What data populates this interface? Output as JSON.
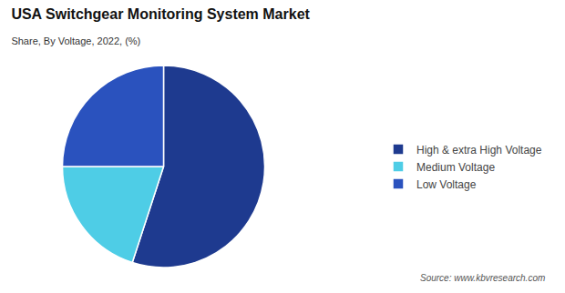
{
  "chart_data": {
    "type": "pie",
    "title": "USA Switchgear Monitoring System Market",
    "subtitle": "Share, By Voltage, 2022, (%)",
    "annotations": [
      "Source: www.kbvresearch.com"
    ],
    "categories": [
      "High & extra High Voltage",
      "Medium Voltage",
      "Low Voltage"
    ],
    "values": [
      55,
      20,
      25
    ],
    "colors": [
      "#1e3a8f",
      "#4ecde6",
      "#2a52be"
    ],
    "legend": "right"
  }
}
